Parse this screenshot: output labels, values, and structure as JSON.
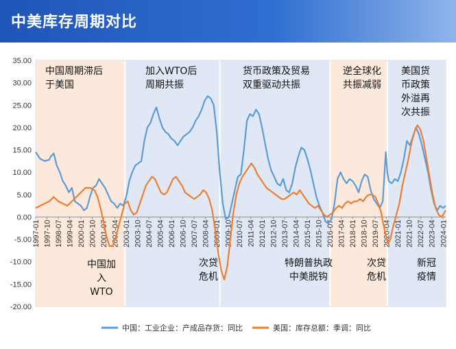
{
  "header": {
    "title": "中美库存周期对比"
  },
  "chart_data": {
    "type": "line",
    "title": "",
    "xlabel": "",
    "ylabel": "",
    "ylim": [
      -20,
      35
    ],
    "yticks": [
      "35.00",
      "30.00",
      "25.00",
      "20.00",
      "15.00",
      "10.00",
      "5.00",
      "0.00",
      "-5.00",
      "-10.00",
      "-15.00",
      "-20.00"
    ],
    "xticks": [
      "1997-01",
      "1997-10",
      "1998-07",
      "1999-04",
      "2000-01",
      "2000-10",
      "2001-07",
      "2002-04",
      "2003-01",
      "2003-10",
      "2004-07",
      "2005-04",
      "2006-01",
      "2006-10",
      "2007-07",
      "2008-04",
      "2009-01",
      "2009-10",
      "2010-07",
      "2011-04",
      "2012-01",
      "2012-10",
      "2013-07",
      "2014-04",
      "2015-01",
      "2015-10",
      "2016-07",
      "2017-04",
      "2018-01",
      "2018-10",
      "2019-07",
      "2020-04",
      "2021-01",
      "2021-10",
      "2022-07",
      "2023-04",
      "2024-01"
    ],
    "legend_position": "bottom",
    "colors": {
      "china": "#5b9bd5",
      "us": "#ed7d31",
      "band_orange": "#fbe5d6",
      "band_blue": "#dae3f3"
    },
    "regions": [
      {
        "label": "中国周期滞后于美国",
        "label_lines": [
          "中国周期滞后",
          "于美国"
        ],
        "start": 1997.0,
        "end": 2002.92,
        "color": "orange"
      },
      {
        "label": "加入WTO后周期共振",
        "label_lines": [
          "加入WTO后",
          "周期共振"
        ],
        "start": 2002.92,
        "end": 2009.2,
        "color": "blue"
      },
      {
        "label": "货币政策及贸易双重驱动共振",
        "label_lines": [
          "货币政策及贸易",
          "双重驱动共振"
        ],
        "start": 2009.2,
        "end": 2016.5,
        "color": "blue"
      },
      {
        "label": "逆全球化共振减弱",
        "label_lines": [
          "逆全球化",
          "共振减弱"
        ],
        "start": 2016.5,
        "end": 2020.3,
        "color": "orange"
      },
      {
        "label": "美国货币政策外溢再次共振",
        "label_lines": [
          "美国货",
          "币政策",
          "外溢再",
          "次共振"
        ],
        "start": 2020.3,
        "end": 2024.17,
        "color": "blue"
      }
    ],
    "events": [
      {
        "label": "中国加入WTO",
        "label_lines": [
          "中国加",
          "入",
          "WTO"
        ],
        "x": 2001.9
      },
      {
        "label": "次贷危机",
        "label_lines": [
          "次贷",
          "危机"
        ],
        "x": 2008.9
      },
      {
        "label": "特朗普执政中美脱钩",
        "label_lines": [
          "特朗普执政",
          "中美脱钩"
        ],
        "x": 2016.5
      },
      {
        "label": "次贷危机",
        "label_lines": [
          "次贷",
          "危机"
        ],
        "x": 2020.0
      },
      {
        "label": "新冠疫情",
        "label_lines": [
          "新冠",
          "疫情"
        ],
        "x": 2022.5
      }
    ],
    "series": [
      {
        "name": "中国：工业企业：产成品存货：同比",
        "color": "#5b9bd5",
        "points": [
          [
            1997.0,
            14.5
          ],
          [
            1997.3,
            13.0
          ],
          [
            1997.6,
            12.5
          ],
          [
            1997.9,
            12.8
          ],
          [
            1998.0,
            13.5
          ],
          [
            1998.2,
            14.2
          ],
          [
            1998.4,
            11.5
          ],
          [
            1998.6,
            10.0
          ],
          [
            1998.8,
            8.0
          ],
          [
            1999.0,
            7.0
          ],
          [
            1999.2,
            5.5
          ],
          [
            1999.4,
            6.5
          ],
          [
            1999.6,
            3.5
          ],
          [
            1999.8,
            3.0
          ],
          [
            2000.0,
            2.5
          ],
          [
            2000.2,
            1.5
          ],
          [
            2000.4,
            2.0
          ],
          [
            2000.6,
            4.5
          ],
          [
            2000.8,
            6.5
          ],
          [
            2001.0,
            7.0
          ],
          [
            2001.2,
            8.5
          ],
          [
            2001.4,
            7.5
          ],
          [
            2001.6,
            6.5
          ],
          [
            2001.8,
            5.0
          ],
          [
            2002.0,
            3.5
          ],
          [
            2002.2,
            3.0
          ],
          [
            2002.4,
            2.0
          ],
          [
            2002.6,
            3.0
          ],
          [
            2002.8,
            2.5
          ],
          [
            2003.0,
            4.5
          ],
          [
            2003.2,
            8.0
          ],
          [
            2003.4,
            10.0
          ],
          [
            2003.6,
            11.5
          ],
          [
            2003.8,
            12.0
          ],
          [
            2004.0,
            12.5
          ],
          [
            2004.2,
            17.0
          ],
          [
            2004.4,
            20.0
          ],
          [
            2004.6,
            21.0
          ],
          [
            2004.8,
            23.0
          ],
          [
            2005.0,
            24.5
          ],
          [
            2005.2,
            22.0
          ],
          [
            2005.4,
            20.0
          ],
          [
            2005.6,
            19.0
          ],
          [
            2005.8,
            18.5
          ],
          [
            2006.0,
            17.5
          ],
          [
            2006.2,
            17.0
          ],
          [
            2006.4,
            16.0
          ],
          [
            2006.6,
            17.0
          ],
          [
            2006.8,
            18.0
          ],
          [
            2007.0,
            18.5
          ],
          [
            2007.2,
            19.0
          ],
          [
            2007.4,
            20.0
          ],
          [
            2007.6,
            21.5
          ],
          [
            2007.8,
            22.5
          ],
          [
            2008.0,
            24.0
          ],
          [
            2008.2,
            26.0
          ],
          [
            2008.4,
            27.0
          ],
          [
            2008.6,
            26.5
          ],
          [
            2008.8,
            25.0
          ],
          [
            2009.0,
            19.0
          ],
          [
            2009.2,
            10.0
          ],
          [
            2009.4,
            3.0
          ],
          [
            2009.6,
            -0.5
          ],
          [
            2009.8,
            0.0
          ],
          [
            2010.0,
            3.0
          ],
          [
            2010.2,
            6.0
          ],
          [
            2010.4,
            9.0
          ],
          [
            2010.6,
            9.5
          ],
          [
            2010.8,
            15.0
          ],
          [
            2011.0,
            21.5
          ],
          [
            2011.2,
            23.0
          ],
          [
            2011.4,
            22.5
          ],
          [
            2011.6,
            24.0
          ],
          [
            2011.8,
            23.0
          ],
          [
            2012.0,
            20.0
          ],
          [
            2012.2,
            16.5
          ],
          [
            2012.4,
            13.0
          ],
          [
            2012.6,
            10.5
          ],
          [
            2012.8,
            9.0
          ],
          [
            2013.0,
            7.5
          ],
          [
            2013.2,
            7.0
          ],
          [
            2013.4,
            8.5
          ],
          [
            2013.6,
            6.0
          ],
          [
            2013.8,
            5.5
          ],
          [
            2014.0,
            7.5
          ],
          [
            2014.2,
            11.0
          ],
          [
            2014.4,
            13.5
          ],
          [
            2014.6,
            15.5
          ],
          [
            2014.8,
            15.0
          ],
          [
            2015.0,
            13.0
          ],
          [
            2015.2,
            10.5
          ],
          [
            2015.4,
            7.5
          ],
          [
            2015.6,
            4.5
          ],
          [
            2015.8,
            2.5
          ],
          [
            2016.0,
            1.0
          ],
          [
            2016.2,
            -1.0
          ],
          [
            2016.4,
            -1.5
          ],
          [
            2016.6,
            -0.5
          ],
          [
            2016.8,
            3.0
          ],
          [
            2017.0,
            8.5
          ],
          [
            2017.2,
            10.0
          ],
          [
            2017.4,
            8.5
          ],
          [
            2017.6,
            7.5
          ],
          [
            2017.8,
            8.5
          ],
          [
            2018.0,
            8.0
          ],
          [
            2018.2,
            7.0
          ],
          [
            2018.4,
            5.5
          ],
          [
            2018.6,
            8.0
          ],
          [
            2018.8,
            9.5
          ],
          [
            2019.0,
            9.0
          ],
          [
            2019.2,
            6.0
          ],
          [
            2019.4,
            4.0
          ],
          [
            2019.6,
            3.0
          ],
          [
            2019.8,
            2.0
          ],
          [
            2020.0,
            3.5
          ],
          [
            2020.2,
            14.5
          ],
          [
            2020.3,
            10.0
          ],
          [
            2020.4,
            8.0
          ],
          [
            2020.6,
            7.5
          ],
          [
            2020.8,
            8.5
          ],
          [
            2021.0,
            8.0
          ],
          [
            2021.2,
            10.0
          ],
          [
            2021.4,
            13.0
          ],
          [
            2021.6,
            17.0
          ],
          [
            2021.8,
            16.0
          ],
          [
            2022.0,
            18.0
          ],
          [
            2022.2,
            20.0
          ],
          [
            2022.4,
            18.5
          ],
          [
            2022.6,
            16.0
          ],
          [
            2022.8,
            13.0
          ],
          [
            2023.0,
            10.0
          ],
          [
            2023.2,
            6.0
          ],
          [
            2023.4,
            3.0
          ],
          [
            2023.6,
            1.5
          ],
          [
            2023.8,
            2.5
          ],
          [
            2024.0,
            2.0
          ],
          [
            2024.17,
            2.5
          ]
        ]
      },
      {
        "name": "美国：库存总额：季调：同比",
        "color": "#ed7d31",
        "points": [
          [
            1997.0,
            2.0
          ],
          [
            1997.3,
            2.5
          ],
          [
            1997.6,
            3.0
          ],
          [
            1997.9,
            3.5
          ],
          [
            1998.2,
            4.5
          ],
          [
            1998.5,
            3.5
          ],
          [
            1998.8,
            3.0
          ],
          [
            1999.1,
            2.5
          ],
          [
            1999.4,
            3.5
          ],
          [
            1999.7,
            4.5
          ],
          [
            2000.0,
            5.5
          ],
          [
            2000.3,
            6.5
          ],
          [
            2000.6,
            6.5
          ],
          [
            2000.9,
            6.0
          ],
          [
            2001.1,
            4.5
          ],
          [
            2001.3,
            2.0
          ],
          [
            2001.5,
            -1.0
          ],
          [
            2001.7,
            -4.5
          ],
          [
            2001.9,
            -6.5
          ],
          [
            2002.1,
            -6.5
          ],
          [
            2002.3,
            -4.5
          ],
          [
            2002.5,
            -2.0
          ],
          [
            2002.7,
            0.5
          ],
          [
            2002.9,
            3.0
          ],
          [
            2003.1,
            3.5
          ],
          [
            2003.3,
            1.5
          ],
          [
            2003.5,
            0.5
          ],
          [
            2003.7,
            1.0
          ],
          [
            2003.9,
            3.0
          ],
          [
            2004.1,
            5.0
          ],
          [
            2004.3,
            7.0
          ],
          [
            2004.5,
            8.0
          ],
          [
            2004.7,
            9.0
          ],
          [
            2004.9,
            8.5
          ],
          [
            2005.1,
            7.0
          ],
          [
            2005.3,
            5.5
          ],
          [
            2005.5,
            5.0
          ],
          [
            2005.7,
            5.5
          ],
          [
            2005.9,
            7.0
          ],
          [
            2006.1,
            8.5
          ],
          [
            2006.3,
            9.0
          ],
          [
            2006.5,
            8.0
          ],
          [
            2006.7,
            7.0
          ],
          [
            2006.9,
            5.5
          ],
          [
            2007.1,
            5.0
          ],
          [
            2007.3,
            4.5
          ],
          [
            2007.5,
            4.0
          ],
          [
            2007.7,
            4.5
          ],
          [
            2007.9,
            5.0
          ],
          [
            2008.1,
            6.0
          ],
          [
            2008.3,
            5.5
          ],
          [
            2008.5,
            4.0
          ],
          [
            2008.7,
            1.5
          ],
          [
            2008.9,
            -3.0
          ],
          [
            2009.1,
            -8.0
          ],
          [
            2009.3,
            -12.0
          ],
          [
            2009.5,
            -14.0
          ],
          [
            2009.7,
            -11.0
          ],
          [
            2009.9,
            -5.0
          ],
          [
            2010.1,
            1.0
          ],
          [
            2010.3,
            5.0
          ],
          [
            2010.5,
            7.5
          ],
          [
            2010.7,
            9.0
          ],
          [
            2010.9,
            10.0
          ],
          [
            2011.1,
            11.0
          ],
          [
            2011.3,
            12.0
          ],
          [
            2011.5,
            11.0
          ],
          [
            2011.7,
            9.5
          ],
          [
            2011.9,
            8.5
          ],
          [
            2012.1,
            7.5
          ],
          [
            2012.3,
            6.5
          ],
          [
            2012.5,
            6.0
          ],
          [
            2012.7,
            5.5
          ],
          [
            2012.9,
            5.0
          ],
          [
            2013.1,
            4.5
          ],
          [
            2013.3,
            4.0
          ],
          [
            2013.5,
            4.0
          ],
          [
            2013.7,
            4.5
          ],
          [
            2013.9,
            5.0
          ],
          [
            2014.1,
            5.5
          ],
          [
            2014.3,
            5.0
          ],
          [
            2014.5,
            6.0
          ],
          [
            2014.7,
            5.0
          ],
          [
            2014.9,
            4.0
          ],
          [
            2015.1,
            3.0
          ],
          [
            2015.3,
            2.5
          ],
          [
            2015.5,
            2.0
          ],
          [
            2015.7,
            2.5
          ],
          [
            2015.9,
            1.5
          ],
          [
            2016.1,
            0.5
          ],
          [
            2016.3,
            0.0
          ],
          [
            2016.5,
            0.5
          ],
          [
            2016.7,
            1.0
          ],
          [
            2016.9,
            2.0
          ],
          [
            2017.1,
            2.5
          ],
          [
            2017.3,
            2.0
          ],
          [
            2017.5,
            3.0
          ],
          [
            2017.7,
            3.5
          ],
          [
            2017.9,
            3.0
          ],
          [
            2018.1,
            3.5
          ],
          [
            2018.3,
            3.5
          ],
          [
            2018.5,
            4.0
          ],
          [
            2018.7,
            3.5
          ],
          [
            2018.9,
            4.5
          ],
          [
            2019.1,
            5.0
          ],
          [
            2019.3,
            5.0
          ],
          [
            2019.5,
            4.5
          ],
          [
            2019.7,
            3.0
          ],
          [
            2019.9,
            1.0
          ],
          [
            2020.0,
            -1.0
          ],
          [
            2020.2,
            -4.0
          ],
          [
            2020.35,
            -6.0
          ],
          [
            2020.5,
            -5.0
          ],
          [
            2020.7,
            -2.0
          ],
          [
            2020.9,
            0.5
          ],
          [
            2021.1,
            3.0
          ],
          [
            2021.3,
            7.0
          ],
          [
            2021.5,
            10.0
          ],
          [
            2021.7,
            13.0
          ],
          [
            2021.9,
            16.5
          ],
          [
            2022.1,
            19.0
          ],
          [
            2022.3,
            20.5
          ],
          [
            2022.5,
            19.5
          ],
          [
            2022.7,
            17.0
          ],
          [
            2022.9,
            13.0
          ],
          [
            2023.1,
            9.0
          ],
          [
            2023.3,
            5.0
          ],
          [
            2023.5,
            2.0
          ],
          [
            2023.7,
            0.5
          ],
          [
            2023.9,
            0.0
          ],
          [
            2024.0,
            0.5
          ],
          [
            2024.17,
            1.5
          ]
        ]
      }
    ]
  }
}
